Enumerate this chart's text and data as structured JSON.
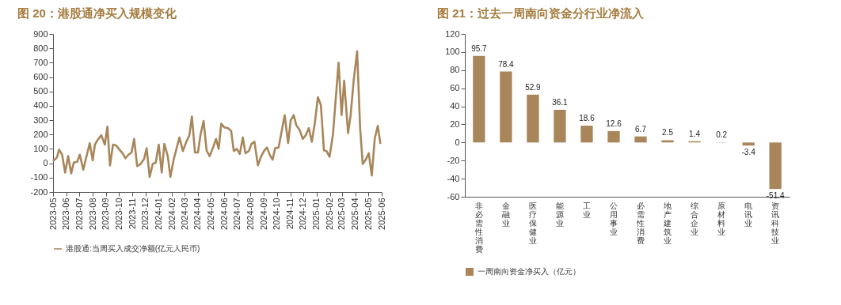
{
  "chart_data": [
    {
      "type": "line",
      "title": "图 20：港股通净买入规模变化",
      "legend": "bottom",
      "marker": "none",
      "line_style": "solid",
      "grid": false,
      "xlim": [
        "2023-05-01",
        "2025-06-01"
      ],
      "xticks": [
        "2023-05",
        "2023-06",
        "2023-07",
        "2023-08",
        "2023-09",
        "2023-10",
        "2023-11",
        "2023-12",
        "2024-01",
        "2024-02",
        "2024-03",
        "2024-04",
        "2024-05",
        "2024-06",
        "2024-07",
        "2024-08",
        "2024-09",
        "2024-10",
        "2024-11",
        "2024-12",
        "2025-01",
        "2025-02",
        "2025-03",
        "2025-04",
        "2025-05",
        "2025-06"
      ],
      "ylim": [
        -200,
        900
      ],
      "yticks": [
        -200,
        -100,
        0,
        100,
        200,
        300,
        400,
        500,
        600,
        700,
        800,
        900
      ],
      "x": [
        "2023-05-01",
        "2023-05-10",
        "2023-05-15",
        "2023-05-22",
        "2023-05-29",
        "2023-06-05",
        "2023-06-12",
        "2023-06-18",
        "2023-06-26",
        "2023-07-02",
        "2023-07-10",
        "2023-07-25",
        "2023-08-01",
        "2023-08-06",
        "2023-08-13",
        "2023-08-21",
        "2023-08-29",
        "2023-09-04",
        "2023-09-10",
        "2023-09-17",
        "2023-09-24",
        "2023-10-02",
        "2023-10-09",
        "2023-10-16",
        "2023-10-23",
        "2023-10-30",
        "2023-11-05",
        "2023-11-12",
        "2023-11-20",
        "2023-11-28",
        "2023-12-04",
        "2023-12-11",
        "2023-12-18",
        "2023-12-25",
        "2024-01-01",
        "2024-01-08",
        "2024-01-14",
        "2024-01-22",
        "2024-01-28",
        "2024-02-05",
        "2024-02-12",
        "2024-02-18",
        "2024-02-26",
        "2024-03-05",
        "2024-03-12",
        "2024-03-18",
        "2024-03-25",
        "2024-04-01",
        "2024-04-07",
        "2024-04-14",
        "2024-04-21",
        "2024-04-28",
        "2024-05-06",
        "2024-05-13",
        "2024-05-19",
        "2024-05-25",
        "2024-06-01",
        "2024-06-09",
        "2024-06-17",
        "2024-06-23",
        "2024-06-30",
        "2024-07-07",
        "2024-07-14",
        "2024-07-20",
        "2024-07-28",
        "2024-08-03",
        "2024-08-10",
        "2024-08-18",
        "2024-08-25",
        "2024-09-01",
        "2024-09-08",
        "2024-09-15",
        "2024-09-21",
        "2024-09-27",
        "2024-10-05",
        "2024-10-19",
        "2024-10-27",
        "2024-11-02",
        "2024-11-09",
        "2024-11-15",
        "2024-11-23",
        "2024-11-30",
        "2024-12-07",
        "2024-12-14",
        "2024-12-21",
        "2024-12-28",
        "2025-01-04",
        "2025-01-11",
        "2025-01-18",
        "2025-01-24",
        "2025-01-31",
        "2025-02-08",
        "2025-02-21",
        "2025-02-28",
        "2025-03-06",
        "2025-03-15",
        "2025-03-21",
        "2025-03-28",
        "2025-04-05",
        "2025-04-12",
        "2025-04-18",
        "2025-04-25",
        "2025-05-02",
        "2025-05-09",
        "2025-05-16",
        "2025-05-23",
        "2025-05-29"
      ],
      "series": [
        {
          "name": "港股通:当周买入成交净额(亿元人民币)",
          "color": "#a8865a",
          "values": [
            15,
            40,
            95,
            60,
            -65,
            50,
            -70,
            5,
            10,
            60,
            -45,
            140,
            20,
            130,
            165,
            195,
            130,
            255,
            -15,
            130,
            125,
            95,
            70,
            35,
            60,
            75,
            170,
            -20,
            -5,
            30,
            105,
            -95,
            -5,
            5,
            130,
            -65,
            135,
            50,
            -95,
            30,
            110,
            180,
            85,
            150,
            195,
            325,
            75,
            75,
            200,
            295,
            90,
            50,
            110,
            170,
            100,
            275,
            250,
            245,
            225,
            85,
            100,
            65,
            180,
            70,
            85,
            135,
            150,
            -15,
            45,
            85,
            110,
            55,
            25,
            105,
            110,
            335,
            140,
            300,
            335,
            265,
            230,
            170,
            195,
            245,
            150,
            280,
            460,
            405,
            90,
            85,
            45,
            200,
            700,
            335,
            575,
            210,
            335,
            575,
            780,
            245,
            -5,
            25,
            70,
            -85,
            175,
            260,
            135
          ]
        }
      ]
    },
    {
      "type": "bar",
      "title": "图 21：过去一周南向资金分行业净流入",
      "legend": "bottom",
      "grid": false,
      "data_labels": true,
      "categories": [
        "非必需性消费",
        "金融业",
        "医疗保健业",
        "能源业",
        "工业",
        "公用事业",
        "必需性消费",
        "地产建筑业",
        "综合企业",
        "原材料业",
        "电讯业",
        "资讯科技业"
      ],
      "ylim": [
        -60,
        120
      ],
      "yticks": [
        -60,
        -40,
        -20,
        0,
        20,
        40,
        60,
        80,
        100,
        120
      ],
      "series": [
        {
          "name": "一周南向资金净买入（亿元）",
          "color": "#a8865a",
          "values": [
            95.7,
            78.4,
            52.9,
            36.1,
            18.6,
            12.6,
            6.7,
            2.5,
            1.4,
            0.2,
            -3.4,
            -51.4
          ]
        }
      ]
    }
  ]
}
